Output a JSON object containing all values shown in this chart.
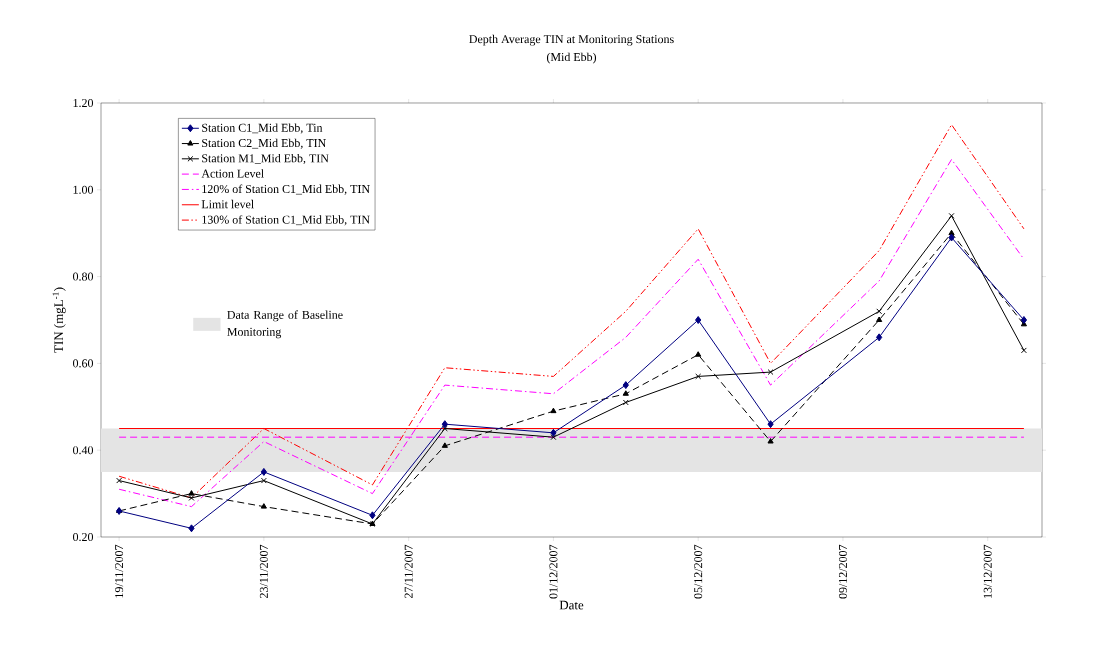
{
  "chart_data": {
    "type": "line",
    "title": "Depth Average TIN at Monitoring Stations",
    "subtitle": "(Mid Ebb)",
    "xlabel": "Date",
    "ylabel": "TIN (mgL$^{-1}$)",
    "x": [
      "2007-11-19",
      "2007-11-21",
      "2007-11-23",
      "2007-11-26",
      "2007-11-28",
      "2007-12-01",
      "2007-12-03",
      "2007-12-05",
      "2007-12-07",
      "2007-12-10",
      "2007-12-12",
      "2007-12-14"
    ],
    "series": [
      {
        "name": "Station C1_Mid Ebb, Tin",
        "color": "#000080",
        "marker": "diamond",
        "line_style": "solid",
        "values": [
          0.26,
          0.22,
          0.35,
          0.25,
          0.46,
          0.44,
          0.55,
          0.7,
          0.46,
          0.66,
          0.89,
          0.7
        ]
      },
      {
        "name": "Station C2_Mid Ebb, TIN",
        "color": "#000000",
        "marker": "triangle",
        "line_style": "dashed",
        "values": [
          0.26,
          0.3,
          0.27,
          0.23,
          0.41,
          0.49,
          0.53,
          0.62,
          0.42,
          0.7,
          0.9,
          0.69
        ]
      },
      {
        "name": "Station M1_Mid Ebb, TIN",
        "color": "#000000",
        "marker": "cross",
        "line_style": "solid",
        "values": [
          0.33,
          0.29,
          0.33,
          0.23,
          0.45,
          0.43,
          0.51,
          0.57,
          0.58,
          0.72,
          0.94,
          0.63
        ]
      },
      {
        "name": "Action Level",
        "color": "#ff00ff",
        "marker": "none",
        "line_style": "dashed",
        "x": [
          "2007-11-19",
          "2007-12-14"
        ],
        "values": [
          0.43,
          0.43
        ]
      },
      {
        "name": "120% of Station C1_Mid Ebb, TIN",
        "color": "#ff00ff",
        "marker": "none",
        "line_style": "dashdot",
        "values": [
          0.31,
          0.27,
          0.42,
          0.3,
          0.55,
          0.53,
          0.66,
          0.84,
          0.55,
          0.79,
          1.07,
          0.84
        ]
      },
      {
        "name": "Limit level",
        "color": "#ff0000",
        "marker": "none",
        "line_style": "solid",
        "x": [
          "2007-11-19",
          "2007-12-14"
        ],
        "values": [
          0.45,
          0.45
        ]
      },
      {
        "name": "130% of Station C1_Mid Ebb, TIN",
        "color": "#ff0000",
        "marker": "none",
        "line_style": "dashdotdot",
        "values": [
          0.34,
          0.29,
          0.45,
          0.32,
          0.59,
          0.57,
          0.72,
          0.91,
          0.6,
          0.86,
          1.15,
          0.91
        ]
      }
    ],
    "bands": [
      {
        "axis": "y",
        "from": 0.35,
        "to": 0.45,
        "label": "Data Range of Baseline Monitoring",
        "color": "#e4e4e4"
      }
    ],
    "xlim": [
      "2007-11-18T12:00",
      "2007-12-14T12:00"
    ],
    "xticks": [
      {
        "value": "2007-11-19",
        "label": "19/11/2007"
      },
      {
        "value": "2007-11-23",
        "label": "23/11/2007"
      },
      {
        "value": "2007-11-27",
        "label": "27/11/2007"
      },
      {
        "value": "2007-12-01",
        "label": "01/12/2007"
      },
      {
        "value": "2007-12-05",
        "label": "05/12/2007"
      },
      {
        "value": "2007-12-09",
        "label": "09/12/2007"
      },
      {
        "value": "2007-12-13",
        "label": "13/12/2007"
      }
    ],
    "ylim": [
      0.2,
      1.2
    ],
    "yticks": [
      {
        "value": 0.2,
        "label": "0.20"
      },
      {
        "value": 0.4,
        "label": "0.40"
      },
      {
        "value": 0.6,
        "label": "0.60"
      },
      {
        "value": 0.8,
        "label": "0.80"
      },
      {
        "value": 1.0,
        "label": "1.00"
      },
      {
        "value": 1.2,
        "label": "1.20"
      }
    ],
    "grid": false,
    "legend": "top left"
  }
}
